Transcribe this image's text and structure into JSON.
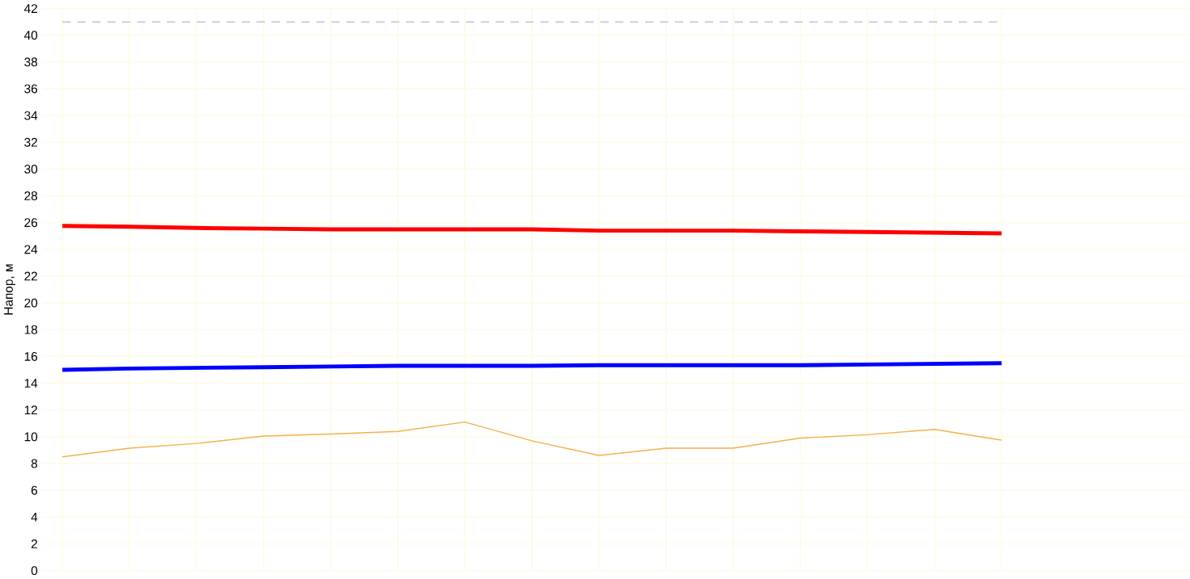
{
  "chart_data": {
    "type": "line",
    "ylabel": "Напор, м",
    "categories": [
      null,
      null,
      null,
      null,
      null,
      null,
      null,
      null,
      null,
      null,
      null,
      null,
      null,
      null,
      null
    ],
    "series": [
      {
        "color": "#ff0000",
        "values": [
          25.75,
          25.7,
          25.6,
          25.55,
          25.5,
          25.5,
          25.5,
          25.5,
          25.4,
          25.4,
          25.4,
          25.35,
          25.3,
          25.25,
          25.2
        ]
      },
      {
        "color": "#0000ff",
        "values": [
          15.0,
          15.1,
          15.15,
          15.2,
          15.25,
          15.3,
          15.3,
          15.3,
          15.35,
          15.35,
          15.35,
          15.35,
          15.4,
          15.45,
          15.5
        ]
      },
      {
        "color": "#f5b04a",
        "values": [
          8.5,
          9.15,
          9.5,
          10.05,
          10.2,
          10.4,
          11.1,
          9.7,
          8.6,
          9.15,
          9.15,
          9.9,
          10.15,
          10.55,
          9.75
        ]
      }
    ],
    "ylim": [
      0,
      42
    ],
    "yticks": [
      0,
      2,
      4,
      6,
      8,
      10,
      12,
      14,
      16,
      18,
      20,
      22,
      24,
      26,
      28,
      30,
      32,
      34,
      36,
      38,
      40,
      42
    ],
    "ref_lines": [
      {
        "axis": "y",
        "value": 41,
        "color": "#a9bdd0",
        "line_style": "dashed"
      }
    ],
    "grid": true,
    "tick_labels": "y"
  }
}
